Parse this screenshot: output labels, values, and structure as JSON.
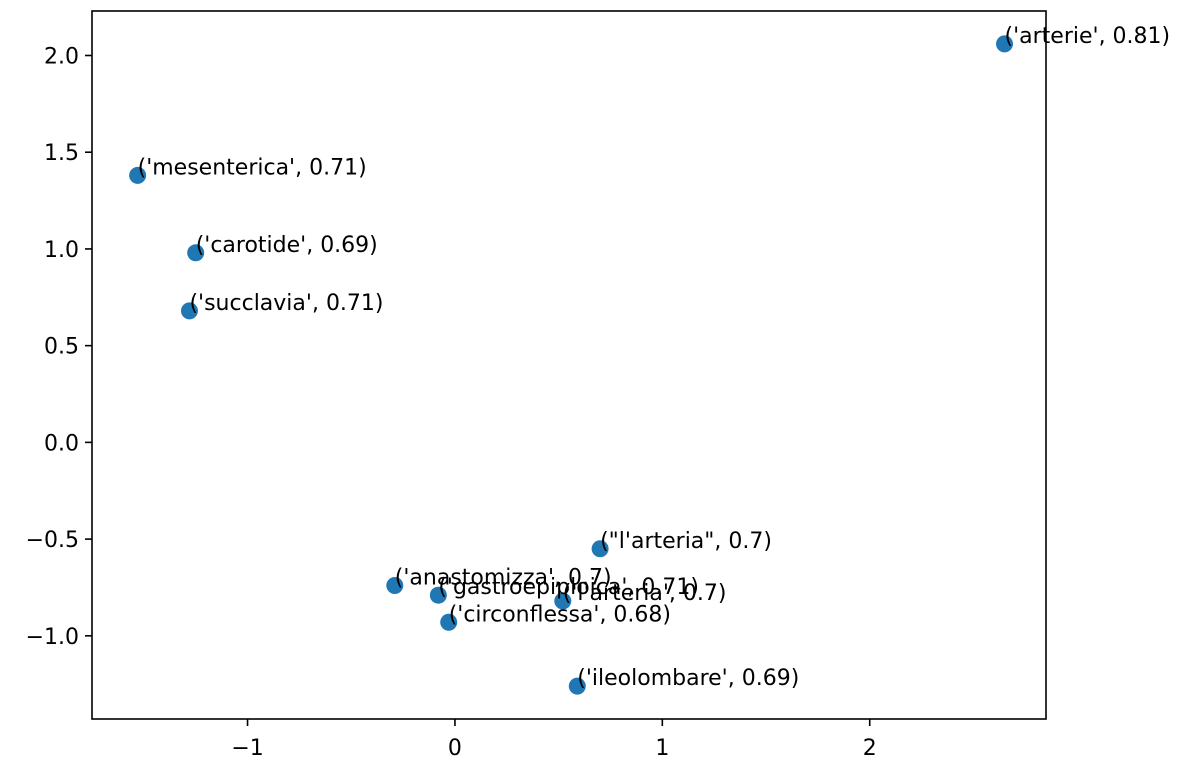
{
  "chart_data": {
    "type": "scatter",
    "title": "",
    "xlabel": "",
    "ylabel": "",
    "xlim": [
      -1.75,
      2.85
    ],
    "ylim": [
      -1.43,
      2.23
    ],
    "xticks": [
      {
        "value": -1,
        "label": "−1"
      },
      {
        "value": 0,
        "label": "0"
      },
      {
        "value": 1,
        "label": "1"
      },
      {
        "value": 2,
        "label": "2"
      }
    ],
    "yticks": [
      {
        "value": -1.0,
        "label": "−1.0"
      },
      {
        "value": -0.5,
        "label": "−0.5"
      },
      {
        "value": 0.0,
        "label": "0.0"
      },
      {
        "value": 0.5,
        "label": "0.5"
      },
      {
        "value": 1.0,
        "label": "1.0"
      },
      {
        "value": 1.5,
        "label": "1.5"
      },
      {
        "value": 2.0,
        "label": "2.0"
      }
    ],
    "grid": false,
    "marker_color": "#1f77b4",
    "points": [
      {
        "x": 2.65,
        "y": 2.06,
        "label": "('arterie', 0.81)"
      },
      {
        "x": -1.53,
        "y": 1.38,
        "label": "('mesenterica', 0.71)"
      },
      {
        "x": -1.25,
        "y": 0.98,
        "label": "('carotide', 0.69)"
      },
      {
        "x": -1.28,
        "y": 0.68,
        "label": "('succlavia', 0.71)"
      },
      {
        "x": 0.7,
        "y": -0.55,
        "label": "(\"l'arteria\", 0.7)"
      },
      {
        "x": -0.29,
        "y": -0.74,
        "label": "('anastomizza', 0.7)"
      },
      {
        "x": -0.08,
        "y": -0.79,
        "label": "('gastroepiploica', 0.71)"
      },
      {
        "x": 0.52,
        "y": -0.82,
        "label": "('l'arteria', 0.7)"
      },
      {
        "x": -0.03,
        "y": -0.93,
        "label": "('circonflessa', 0.68)"
      },
      {
        "x": 0.59,
        "y": -1.26,
        "label": "('ileolombare', 0.69)"
      }
    ]
  }
}
